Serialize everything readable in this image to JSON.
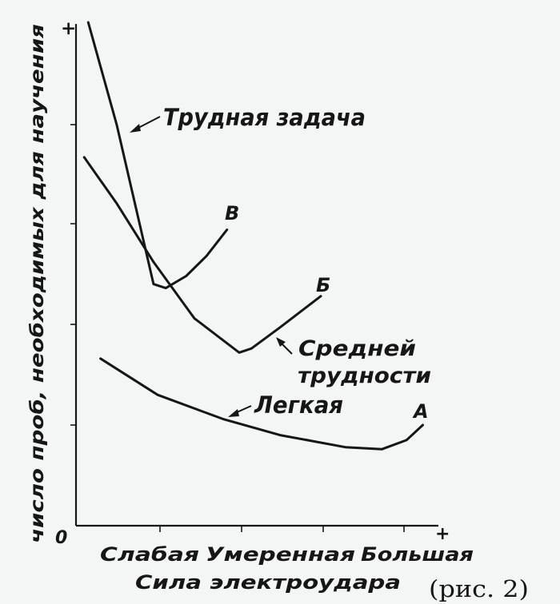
{
  "chart_data": {
    "type": "line",
    "ylabel": "число проб, необходимых для научения",
    "xlabel": "Сила электроудара",
    "x_categories": [
      "Слабая",
      "Умеренная",
      "Большая"
    ],
    "y_origin_label": "0",
    "x_axis_plus": "+",
    "y_axis_plus": "+",
    "grid": false,
    "series": [
      {
        "name": "Трудная задача",
        "end_label": "В",
        "points": [
          {
            "x": 0.15,
            "y": 5.0
          },
          {
            "x": 0.5,
            "y": 3.98
          },
          {
            "x": 0.95,
            "y": 2.4
          },
          {
            "x": 1.1,
            "y": 2.36
          },
          {
            "x": 1.35,
            "y": 2.48
          },
          {
            "x": 1.6,
            "y": 2.68
          },
          {
            "x": 1.85,
            "y": 2.94
          }
        ]
      },
      {
        "name": "Средней трудности",
        "end_label": "Б",
        "points": [
          {
            "x": 0.1,
            "y": 3.66
          },
          {
            "x": 0.5,
            "y": 3.2
          },
          {
            "x": 0.95,
            "y": 2.62
          },
          {
            "x": 1.45,
            "y": 2.06
          },
          {
            "x": 2.0,
            "y": 1.72
          },
          {
            "x": 2.15,
            "y": 1.76
          },
          {
            "x": 2.5,
            "y": 1.97
          },
          {
            "x": 3.0,
            "y": 2.28
          }
        ]
      },
      {
        "name": "Легкая",
        "end_label": "А",
        "points": [
          {
            "x": 0.3,
            "y": 1.66
          },
          {
            "x": 1.0,
            "y": 1.3
          },
          {
            "x": 1.8,
            "y": 1.06
          },
          {
            "x": 2.5,
            "y": 0.9
          },
          {
            "x": 3.3,
            "y": 0.78
          },
          {
            "x": 3.75,
            "y": 0.76
          },
          {
            "x": 4.05,
            "y": 0.85
          },
          {
            "x": 4.25,
            "y": 1.0
          }
        ]
      }
    ],
    "caption": "(рис. 2)"
  }
}
